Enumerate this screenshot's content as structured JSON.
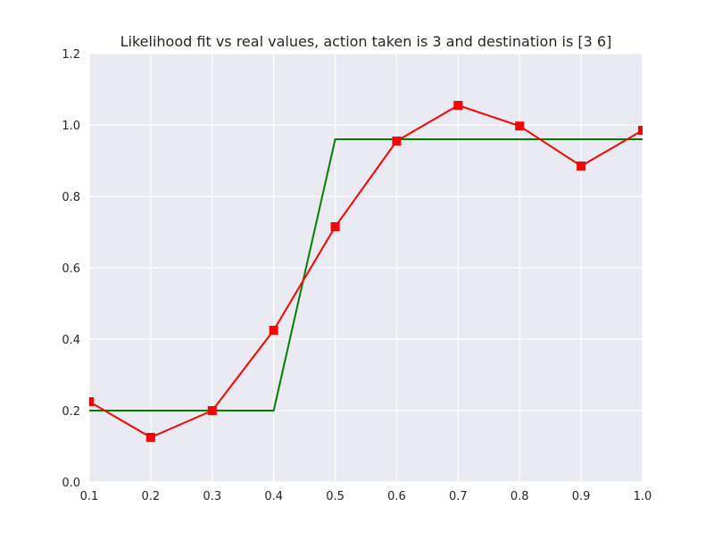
{
  "chart_data": {
    "type": "line",
    "title": "Likelihood fit vs real values, action taken is 3 and destination is [3 6]",
    "xlabel": "",
    "ylabel": "",
    "xlim": [
      0.1,
      1.0
    ],
    "ylim": [
      0.0,
      1.2
    ],
    "xticks": [
      "0.1",
      "0.2",
      "0.3",
      "0.4",
      "0.5",
      "0.6",
      "0.7",
      "0.8",
      "0.9",
      "1.0"
    ],
    "yticks": [
      "0.0",
      "0.2",
      "0.4",
      "0.6",
      "0.8",
      "1.0",
      "1.2"
    ],
    "grid": true,
    "series": [
      {
        "color": "#008000",
        "marker": "none",
        "x": [
          0.1,
          0.2,
          0.3,
          0.4,
          0.5,
          0.6,
          0.7,
          0.8,
          0.9,
          1.0
        ],
        "values": [
          0.2,
          0.2,
          0.2,
          0.2,
          0.96,
          0.96,
          0.96,
          0.96,
          0.96,
          0.96
        ]
      },
      {
        "color": "#ff0000",
        "marker": "square",
        "x": [
          0.1,
          0.2,
          0.3,
          0.4,
          0.5,
          0.6,
          0.7,
          0.8,
          0.9,
          1.0
        ],
        "values": [
          0.225,
          0.125,
          0.2,
          0.425,
          0.715,
          0.955,
          1.055,
          0.997,
          0.885,
          0.985
        ]
      }
    ]
  },
  "colors": {
    "plot_background": "#eaeaf2",
    "grid": "#ffffff",
    "text": "#262626"
  }
}
